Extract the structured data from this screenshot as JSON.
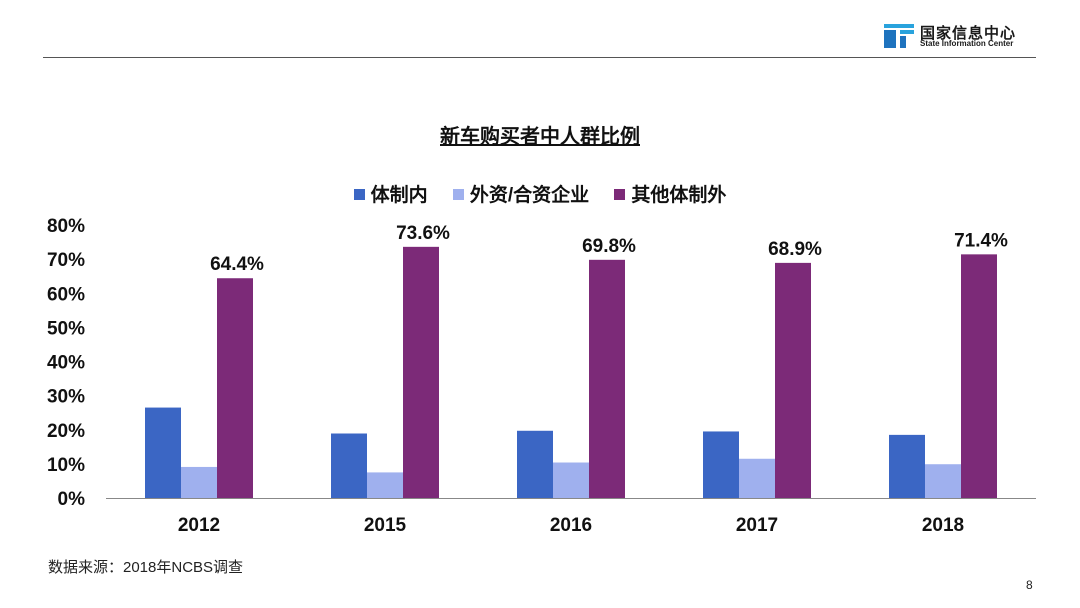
{
  "header": {
    "org_name_cn": "国家信息中心",
    "org_name_en": "State Information Center",
    "logo_colors": [
      "#1e73be",
      "#29a3dd"
    ]
  },
  "chart_data": {
    "type": "bar",
    "title": "新车购买者中人群比例",
    "categories": [
      "2012",
      "2015",
      "2016",
      "2017",
      "2018"
    ],
    "series": [
      {
        "name": "体制内",
        "color": "#3b66c4",
        "values": [
          26.5,
          18.9,
          19.7,
          19.5,
          18.5
        ]
      },
      {
        "name": "外资/合资企业",
        "color": "#9fb0ee",
        "values": [
          9.1,
          7.5,
          10.4,
          11.5,
          9.9
        ]
      },
      {
        "name": "其他体制外",
        "color": "#7c2a78",
        "values": [
          64.4,
          73.6,
          69.8,
          68.9,
          71.4
        ]
      }
    ],
    "data_labels": [
      "64.4%",
      "73.6%",
      "69.8%",
      "68.9%",
      "71.4%"
    ],
    "data_labels_series": 2,
    "y_ticks": [
      "0%",
      "10%",
      "20%",
      "30%",
      "40%",
      "50%",
      "60%",
      "70%",
      "80%"
    ],
    "ylim": [
      0,
      80
    ],
    "xlabel": "",
    "ylabel": "",
    "grid": false,
    "legend_position": "top"
  },
  "footer": {
    "source": "数据来源：2018年NCBS调查",
    "page_number": "8"
  }
}
